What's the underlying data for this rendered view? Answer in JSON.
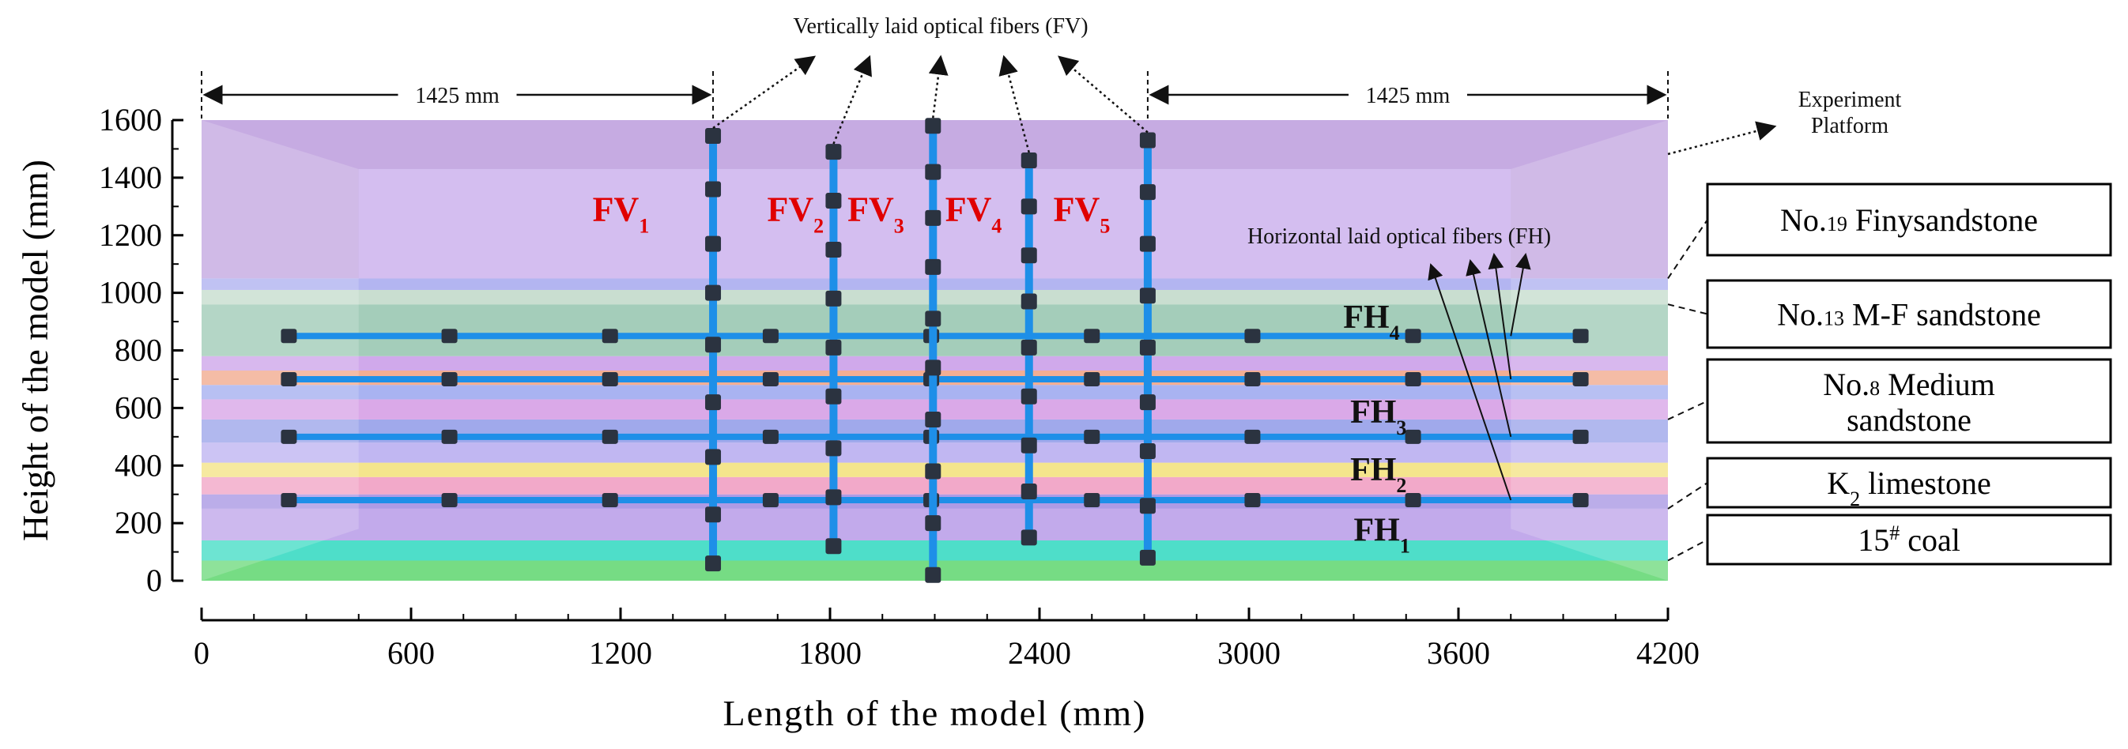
{
  "title_callouts": {
    "fv": "Vertically laid optical fibers (FV)",
    "fh": "Horizontal laid optical fibers (FH)",
    "platform": [
      "Experiment",
      "Platform"
    ]
  },
  "dimensions": {
    "left": "1425 mm",
    "right": "1425 mm"
  },
  "axes": {
    "xlabel": "Length of the model (mm)",
    "ylabel": "Height of the model (mm)",
    "x_ticks": [
      0,
      600,
      1200,
      1800,
      2400,
      3000,
      3600,
      4200
    ],
    "y_ticks": [
      0,
      200,
      400,
      600,
      800,
      1000,
      1200,
      1400,
      1600
    ],
    "xlim": [
      0,
      4200
    ],
    "ylim": [
      0,
      1600
    ]
  },
  "colors": {
    "platform": "#c3a6e0",
    "platform_inner": "#d5c0f2",
    "fiber": "#1e8fe8",
    "sensor": "#2b3340",
    "fv_label": "#e00000"
  },
  "layers": [
    {
      "from": 0,
      "to": 70,
      "color": "#5ed66e"
    },
    {
      "from": 70,
      "to": 140,
      "color": "#2fd8c0"
    },
    {
      "from": 140,
      "to": 250,
      "color": "#b79be8"
    },
    {
      "from": 250,
      "to": 300,
      "color": "#9f8ae0"
    },
    {
      "from": 300,
      "to": 360,
      "color": "#f09ac0"
    },
    {
      "from": 360,
      "to": 410,
      "color": "#f2e078"
    },
    {
      "from": 410,
      "to": 480,
      "color": "#b6aaf0"
    },
    {
      "from": 480,
      "to": 560,
      "color": "#8f9ae8"
    },
    {
      "from": 560,
      "to": 630,
      "color": "#d49ae4"
    },
    {
      "from": 630,
      "to": 680,
      "color": "#9aa6ef"
    },
    {
      "from": 680,
      "to": 730,
      "color": "#f0a080"
    },
    {
      "from": 730,
      "to": 780,
      "color": "#c89ae8"
    },
    {
      "from": 780,
      "to": 960,
      "color": "#94c4ae"
    },
    {
      "from": 960,
      "to": 1010,
      "color": "#c0d8c8"
    },
    {
      "from": 1010,
      "to": 1050,
      "color": "#a6a8ee"
    }
  ],
  "fibers": {
    "vertical": [
      {
        "label": "FV",
        "sub": "1",
        "x": 1465,
        "y0": 60,
        "y1": 1545,
        "label_x": 1120,
        "sensors": [
          60,
          230,
          430,
          620,
          820,
          1000,
          1170,
          1360,
          1545
        ]
      },
      {
        "label": "FV",
        "sub": "2",
        "x": 1810,
        "y0": 120,
        "y1": 1490,
        "label_x": 1620,
        "sensors": [
          120,
          290,
          460,
          640,
          810,
          980,
          1150,
          1320,
          1490
        ]
      },
      {
        "label": "FV",
        "sub": "3",
        "x": 2095,
        "y0": 20,
        "y1": 1580,
        "label_x": 1850,
        "sensors": [
          20,
          200,
          380,
          560,
          740,
          910,
          1090,
          1260,
          1420,
          1580
        ]
      },
      {
        "label": "FV",
        "sub": "4",
        "x": 2370,
        "y0": 150,
        "y1": 1460,
        "label_x": 2130,
        "sensors": [
          150,
          310,
          470,
          640,
          810,
          970,
          1130,
          1300,
          1460
        ]
      },
      {
        "label": "FV",
        "sub": "5",
        "x": 2710,
        "y0": 80,
        "y1": 1530,
        "label_x": 2440,
        "sensors": [
          80,
          260,
          450,
          620,
          810,
          990,
          1170,
          1350,
          1530
        ]
      }
    ],
    "horizontal": [
      {
        "label": "FH",
        "sub": "1",
        "y": 280,
        "x0": 250,
        "x1": 3950,
        "label_x": 3300,
        "label_y": 180,
        "sensors": [
          250,
          710,
          1170,
          1630,
          2090,
          2550,
          3010,
          3470,
          3950
        ]
      },
      {
        "label": "FH",
        "sub": "2",
        "y": 500,
        "x0": 250,
        "x1": 3950,
        "label_x": 3290,
        "label_y": 390,
        "sensors": [
          250,
          710,
          1170,
          1630,
          2090,
          2550,
          3010,
          3470,
          3950
        ]
      },
      {
        "label": "FH",
        "sub": "3",
        "y": 700,
        "x0": 250,
        "x1": 3950,
        "label_x": 3290,
        "label_y": 590,
        "sensors": [
          250,
          710,
          1170,
          1630,
          2090,
          2550,
          3010,
          3470,
          3950
        ]
      },
      {
        "label": "FH",
        "sub": "4",
        "y": 850,
        "x0": 250,
        "x1": 3950,
        "label_x": 3270,
        "label_y": 920,
        "sensors": [
          250,
          710,
          1170,
          1630,
          2090,
          2550,
          3010,
          3470,
          3950
        ]
      }
    ]
  },
  "strata_labels": [
    {
      "prefix": "No.",
      "number": "19",
      "name": "Finysandstone",
      "lines": 1
    },
    {
      "prefix": "No.",
      "number": "13",
      "name": "M-F sandstone",
      "lines": 1
    },
    {
      "prefix": "No.",
      "number": "8",
      "name": "Medium",
      "line2": "sandstone",
      "lines": 2
    },
    {
      "prefix": "K",
      "number": "2",
      "name": " limestone",
      "lines": 1,
      "subscript": true
    },
    {
      "prefix": "15",
      "number": "#",
      "name": " coal",
      "lines": 1,
      "superscript": true
    }
  ]
}
